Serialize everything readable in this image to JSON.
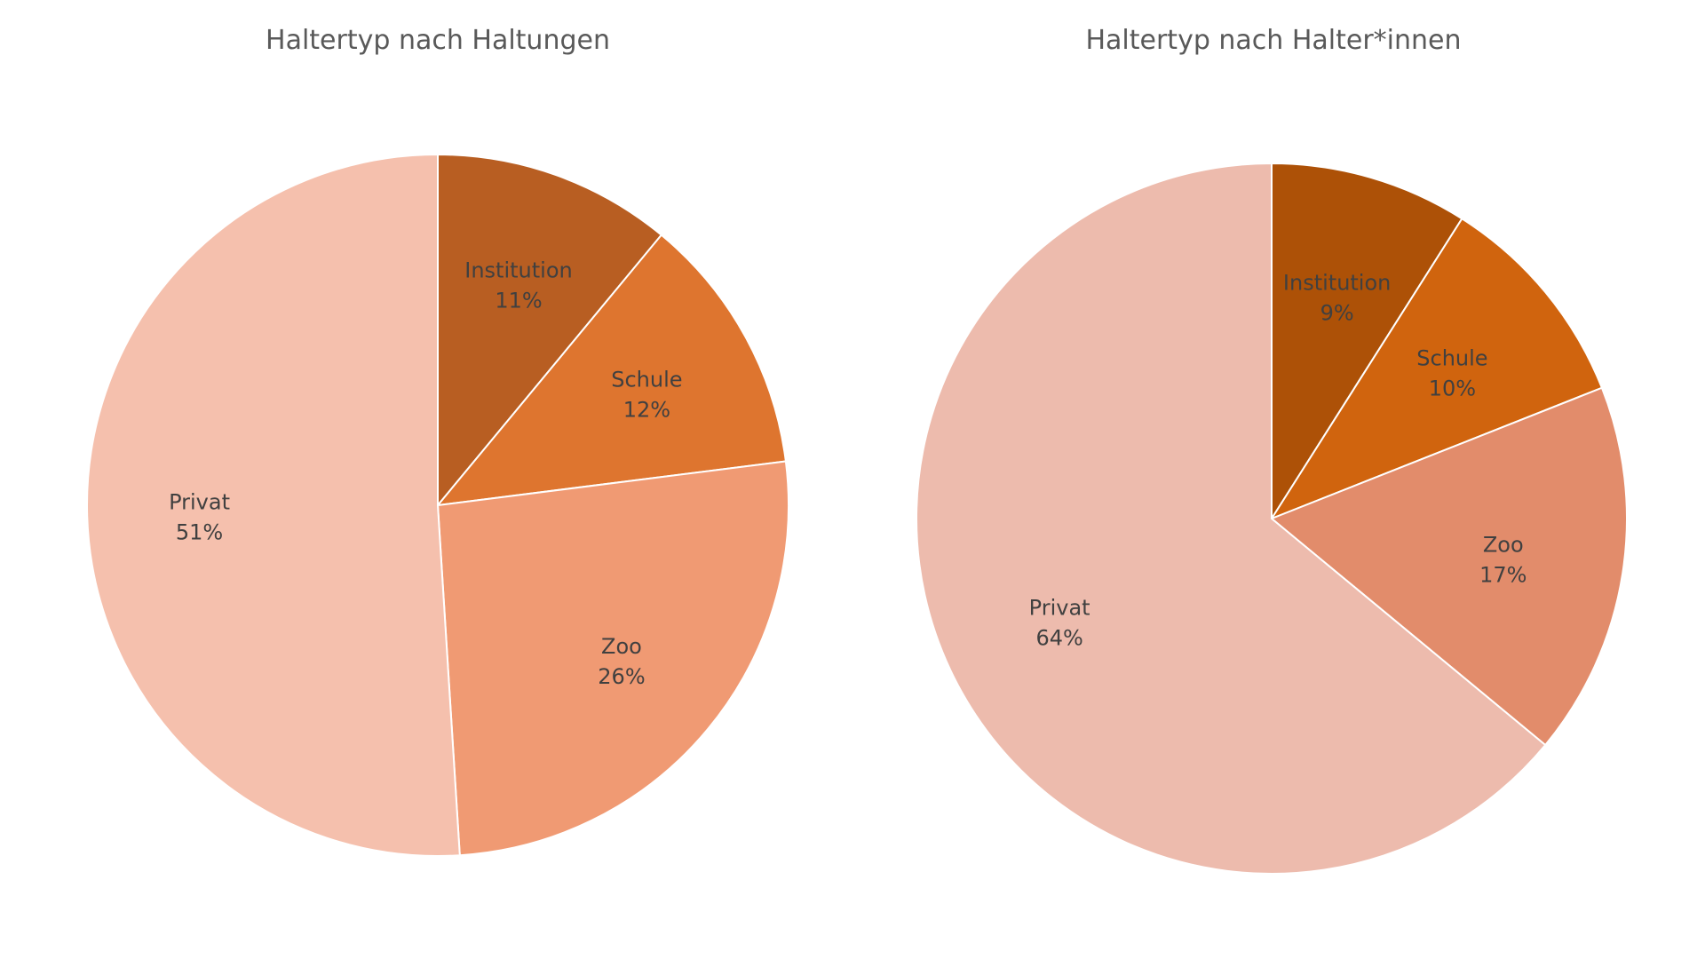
{
  "chart_data": [
    {
      "type": "pie",
      "title": "Haltertyp nach Haltungen",
      "categories": [
        "Institution",
        "Schule",
        "Zoo",
        "Privat"
      ],
      "values": [
        11,
        12,
        26,
        51
      ],
      "value_labels": [
        "11%",
        "12%",
        "26%",
        "51%"
      ],
      "colors": [
        "#b85e22",
        "#de752f",
        "#f09a73",
        "#f5c0ad"
      ],
      "legend": "none",
      "slice_label_position": "inside"
    },
    {
      "type": "pie",
      "title": "Haltertyp nach Halter*innen",
      "categories": [
        "Institution",
        "Schule",
        "Zoo",
        "Privat"
      ],
      "values": [
        9,
        10,
        17,
        64
      ],
      "value_labels": [
        "9%",
        "10%",
        "17%",
        "64%"
      ],
      "colors": [
        "#ad5107",
        "#d0640e",
        "#e28c6b",
        "#edbbad"
      ],
      "legend": "none",
      "slice_label_position": "inside"
    }
  ]
}
